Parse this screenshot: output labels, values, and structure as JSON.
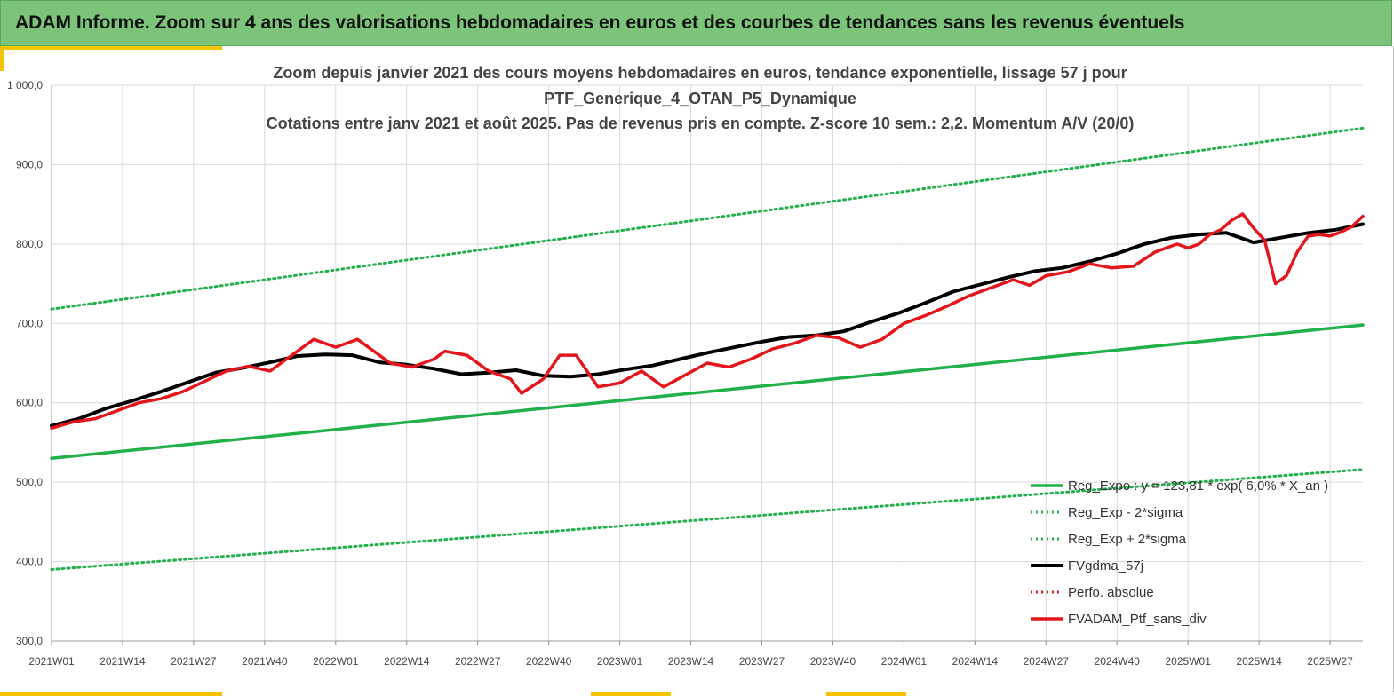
{
  "banner": {
    "title": "ADAM Informe. Zoom sur 4 ans des valorisations hebdomadaires en euros et des courbes de tendances sans les revenus éventuels"
  },
  "colors": {
    "banner_bg": "#7cc47a",
    "accent": "#f5c400",
    "reg_green": "#22b04b",
    "black": "#000000",
    "red": "#e3161c"
  },
  "chart_data": {
    "type": "line",
    "title": [
      "Zoom depuis janvier 2021 des cours moyens hebdomadaires  en euros, tendance exponentielle, lissage 57 j pour",
      "PTF_Generique_4_OTAN_P5_Dynamique",
      "Cotations  entre janv 2021 et août 2025. Pas de revenus pris en compte. Z-score 10 sem.: 2,2. Momentum A/V (20/0)"
    ],
    "ylim": [
      300,
      1000
    ],
    "y_ticks": [
      "300,0",
      "400,0",
      "500,0",
      "600,0",
      "700,0",
      "800,0",
      "900,0",
      "1 000,0"
    ],
    "x_ticks": [
      "2021W01",
      "2021W14",
      "2021W27",
      "2021W40",
      "2022W01",
      "2022W14",
      "2022W27",
      "2022W40",
      "2023W01",
      "2023W14",
      "2023W27",
      "2023W40",
      "2024W01",
      "2024W14",
      "2024W27",
      "2024W40",
      "2025W01",
      "2025W14",
      "2025W27"
    ],
    "x_weeks_total": 240,
    "grid": true,
    "legend_position": "bottom-right",
    "series": [
      {
        "name": "Reg_Expo : y = 123,81 * exp( 6,0% *  X_an )",
        "style": "solid-thick",
        "color": "#22b04b",
        "x": [
          0,
          240
        ],
        "values": [
          530,
          698
        ]
      },
      {
        "name": "Reg_Exp - 2*sigma",
        "style": "dotted",
        "color": "#22b04b",
        "x": [
          0,
          240
        ],
        "values": [
          390,
          516
        ]
      },
      {
        "name": "Reg_Exp + 2*sigma",
        "style": "dotted",
        "color": "#22b04b",
        "x": [
          0,
          240
        ],
        "values": [
          718,
          946
        ]
      },
      {
        "name": "FVgdma_57j",
        "style": "solid-thick",
        "color": "#000000",
        "x": [
          0,
          5,
          10,
          15,
          20,
          25,
          30,
          35,
          40,
          45,
          50,
          55,
          60,
          65,
          70,
          75,
          80,
          85,
          90,
          95,
          100,
          105,
          110,
          115,
          120,
          125,
          130,
          135,
          140,
          145,
          150,
          155,
          160,
          165,
          170,
          175,
          180,
          185,
          190,
          195,
          200,
          205,
          210,
          215,
          220,
          225,
          230,
          235,
          240
        ],
        "values": [
          571,
          580,
          593,
          603,
          614,
          626,
          638,
          644,
          651,
          659,
          661,
          660,
          651,
          648,
          643,
          636,
          638,
          641,
          634,
          633,
          636,
          642,
          647,
          655,
          663,
          670,
          677,
          683,
          685,
          690,
          702,
          713,
          726,
          740,
          749,
          758,
          766,
          770,
          778,
          788,
          800,
          808,
          812,
          814,
          802,
          808,
          814,
          818,
          825
        ]
      },
      {
        "name": "Perfo. absolue",
        "style": "dotted",
        "color": "#e3161c",
        "x": [],
        "values": []
      },
      {
        "name": "FVADAM_Ptf_sans_div",
        "style": "solid-thick",
        "color": "#e3161c",
        "x": [
          0,
          4,
          8,
          12,
          16,
          20,
          24,
          28,
          32,
          36,
          40,
          44,
          48,
          52,
          56,
          60,
          62,
          66,
          70,
          72,
          76,
          80,
          84,
          86,
          90,
          93,
          96,
          100,
          104,
          108,
          112,
          116,
          120,
          124,
          128,
          132,
          136,
          140,
          144,
          148,
          152,
          156,
          160,
          164,
          168,
          172,
          176,
          179,
          182,
          186,
          190,
          194,
          198,
          202,
          206,
          208,
          210,
          212,
          214,
          216,
          218,
          220,
          222,
          224,
          226,
          228,
          230,
          232,
          234,
          236,
          238,
          240
        ],
        "values": [
          568,
          576,
          580,
          590,
          600,
          605,
          614,
          627,
          640,
          646,
          640,
          660,
          680,
          670,
          680,
          660,
          650,
          645,
          655,
          665,
          660,
          640,
          630,
          612,
          630,
          660,
          660,
          620,
          625,
          640,
          620,
          635,
          650,
          645,
          655,
          668,
          675,
          685,
          682,
          670,
          680,
          700,
          710,
          722,
          735,
          745,
          755,
          748,
          760,
          765,
          775,
          770,
          772,
          790,
          800,
          795,
          800,
          812,
          818,
          830,
          838,
          820,
          805,
          750,
          760,
          790,
          810,
          812,
          810,
          815,
          822,
          835
        ]
      }
    ]
  }
}
